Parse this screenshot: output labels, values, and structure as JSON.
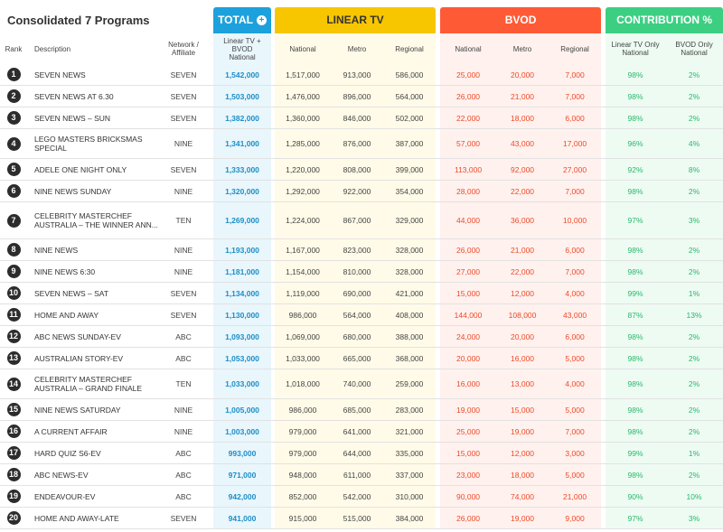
{
  "title": "Consolidated 7 Programs",
  "groups": {
    "total": "TOTAL",
    "linear": "LINEAR TV",
    "bvod": "BVOD",
    "contribution": "CONTRIBUTION %"
  },
  "columns": {
    "rank": "Rank",
    "description": "Description",
    "network_l1": "Network /",
    "network_l2": "Affiliate",
    "total_l1": "Linear TV + BVOD",
    "total_l2": "National",
    "lin_national": "National",
    "lin_metro": "Metro",
    "lin_regional": "Regional",
    "bvod_national": "National",
    "bvod_metro": "Metro",
    "bvod_regional": "Regional",
    "con_linear_l1": "Linear TV Only",
    "con_linear_l2": "National",
    "con_bvod_l1": "BVOD Only",
    "con_bvod_l2": "National"
  },
  "rows": [
    {
      "rank": "1",
      "desc": "SEVEN NEWS",
      "net": "SEVEN",
      "total": "1,542,000",
      "ln": "1,517,000",
      "lm": "913,000",
      "lr": "586,000",
      "bn": "25,000",
      "bm": "20,000",
      "br": "7,000",
      "cl": "98%",
      "cb": "2%"
    },
    {
      "rank": "2",
      "desc": "SEVEN NEWS AT 6.30",
      "net": "SEVEN",
      "total": "1,503,000",
      "ln": "1,476,000",
      "lm": "896,000",
      "lr": "564,000",
      "bn": "26,000",
      "bm": "21,000",
      "br": "7,000",
      "cl": "98%",
      "cb": "2%"
    },
    {
      "rank": "3",
      "desc": "SEVEN NEWS – SUN",
      "net": "SEVEN",
      "total": "1,382,000",
      "ln": "1,360,000",
      "lm": "846,000",
      "lr": "502,000",
      "bn": "22,000",
      "bm": "18,000",
      "br": "6,000",
      "cl": "98%",
      "cb": "2%"
    },
    {
      "rank": "4",
      "desc": "LEGO MASTERS BRICKSMAS SPECIAL",
      "net": "NINE",
      "total": "1,341,000",
      "ln": "1,285,000",
      "lm": "876,000",
      "lr": "387,000",
      "bn": "57,000",
      "bm": "43,000",
      "br": "17,000",
      "cl": "96%",
      "cb": "4%"
    },
    {
      "rank": "5",
      "desc": "ADELE ONE NIGHT ONLY",
      "net": "SEVEN",
      "total": "1,333,000",
      "ln": "1,220,000",
      "lm": "808,000",
      "lr": "399,000",
      "bn": "113,000",
      "bm": "92,000",
      "br": "27,000",
      "cl": "92%",
      "cb": "8%"
    },
    {
      "rank": "6",
      "desc": "NINE NEWS SUNDAY",
      "net": "NINE",
      "total": "1,320,000",
      "ln": "1,292,000",
      "lm": "922,000",
      "lr": "354,000",
      "bn": "28,000",
      "bm": "22,000",
      "br": "7,000",
      "cl": "98%",
      "cb": "2%"
    },
    {
      "rank": "7",
      "desc": "CELEBRITY MASTERCHEF AUSTRALIA – THE WINNER ANN...",
      "net": "TEN",
      "total": "1,269,000",
      "ln": "1,224,000",
      "lm": "867,000",
      "lr": "329,000",
      "bn": "44,000",
      "bm": "36,000",
      "br": "10,000",
      "cl": "97%",
      "cb": "3%"
    },
    {
      "rank": "8",
      "desc": "NINE NEWS",
      "net": "NINE",
      "total": "1,193,000",
      "ln": "1,167,000",
      "lm": "823,000",
      "lr": "328,000",
      "bn": "26,000",
      "bm": "21,000",
      "br": "6,000",
      "cl": "98%",
      "cb": "2%"
    },
    {
      "rank": "9",
      "desc": "NINE NEWS 6:30",
      "net": "NINE",
      "total": "1,181,000",
      "ln": "1,154,000",
      "lm": "810,000",
      "lr": "328,000",
      "bn": "27,000",
      "bm": "22,000",
      "br": "7,000",
      "cl": "98%",
      "cb": "2%"
    },
    {
      "rank": "10",
      "desc": "SEVEN NEWS – SAT",
      "net": "SEVEN",
      "total": "1,134,000",
      "ln": "1,119,000",
      "lm": "690,000",
      "lr": "421,000",
      "bn": "15,000",
      "bm": "12,000",
      "br": "4,000",
      "cl": "99%",
      "cb": "1%"
    },
    {
      "rank": "11",
      "desc": "HOME AND AWAY",
      "net": "SEVEN",
      "total": "1,130,000",
      "ln": "986,000",
      "lm": "564,000",
      "lr": "408,000",
      "bn": "144,000",
      "bm": "108,000",
      "br": "43,000",
      "cl": "87%",
      "cb": "13%"
    },
    {
      "rank": "12",
      "desc": "ABC NEWS SUNDAY-EV",
      "net": "ABC",
      "total": "1,093,000",
      "ln": "1,069,000",
      "lm": "680,000",
      "lr": "388,000",
      "bn": "24,000",
      "bm": "20,000",
      "br": "6,000",
      "cl": "98%",
      "cb": "2%"
    },
    {
      "rank": "13",
      "desc": "AUSTRALIAN STORY-EV",
      "net": "ABC",
      "total": "1,053,000",
      "ln": "1,033,000",
      "lm": "665,000",
      "lr": "368,000",
      "bn": "20,000",
      "bm": "16,000",
      "br": "5,000",
      "cl": "98%",
      "cb": "2%"
    },
    {
      "rank": "14",
      "desc": "CELEBRITY MASTERCHEF AUSTRALIA – GRAND FINALE",
      "net": "TEN",
      "total": "1,033,000",
      "ln": "1,018,000",
      "lm": "740,000",
      "lr": "259,000",
      "bn": "16,000",
      "bm": "13,000",
      "br": "4,000",
      "cl": "98%",
      "cb": "2%"
    },
    {
      "rank": "15",
      "desc": "NINE NEWS SATURDAY",
      "net": "NINE",
      "total": "1,005,000",
      "ln": "986,000",
      "lm": "685,000",
      "lr": "283,000",
      "bn": "19,000",
      "bm": "15,000",
      "br": "5,000",
      "cl": "98%",
      "cb": "2%"
    },
    {
      "rank": "16",
      "desc": "A CURRENT AFFAIR",
      "net": "NINE",
      "total": "1,003,000",
      "ln": "979,000",
      "lm": "641,000",
      "lr": "321,000",
      "bn": "25,000",
      "bm": "19,000",
      "br": "7,000",
      "cl": "98%",
      "cb": "2%"
    },
    {
      "rank": "17",
      "desc": "HARD QUIZ S6-EV",
      "net": "ABC",
      "total": "993,000",
      "ln": "979,000",
      "lm": "644,000",
      "lr": "335,000",
      "bn": "15,000",
      "bm": "12,000",
      "br": "3,000",
      "cl": "99%",
      "cb": "1%"
    },
    {
      "rank": "18",
      "desc": "ABC NEWS-EV",
      "net": "ABC",
      "total": "971,000",
      "ln": "948,000",
      "lm": "611,000",
      "lr": "337,000",
      "bn": "23,000",
      "bm": "18,000",
      "br": "5,000",
      "cl": "98%",
      "cb": "2%"
    },
    {
      "rank": "19",
      "desc": "ENDEAVOUR-EV",
      "net": "ABC",
      "total": "942,000",
      "ln": "852,000",
      "lm": "542,000",
      "lr": "310,000",
      "bn": "90,000",
      "bm": "74,000",
      "br": "21,000",
      "cl": "90%",
      "cb": "10%"
    },
    {
      "rank": "20",
      "desc": "HOME AND AWAY-LATE",
      "net": "SEVEN",
      "total": "941,000",
      "ln": "915,000",
      "lm": "515,000",
      "lr": "384,000",
      "bn": "26,000",
      "bm": "19,000",
      "br": "9,000",
      "cl": "97%",
      "cb": "3%"
    }
  ],
  "colors": {
    "total": "#1da1dc",
    "linear": "#f7c600",
    "bvod": "#ff5a36",
    "contribution": "#3ccf82"
  }
}
